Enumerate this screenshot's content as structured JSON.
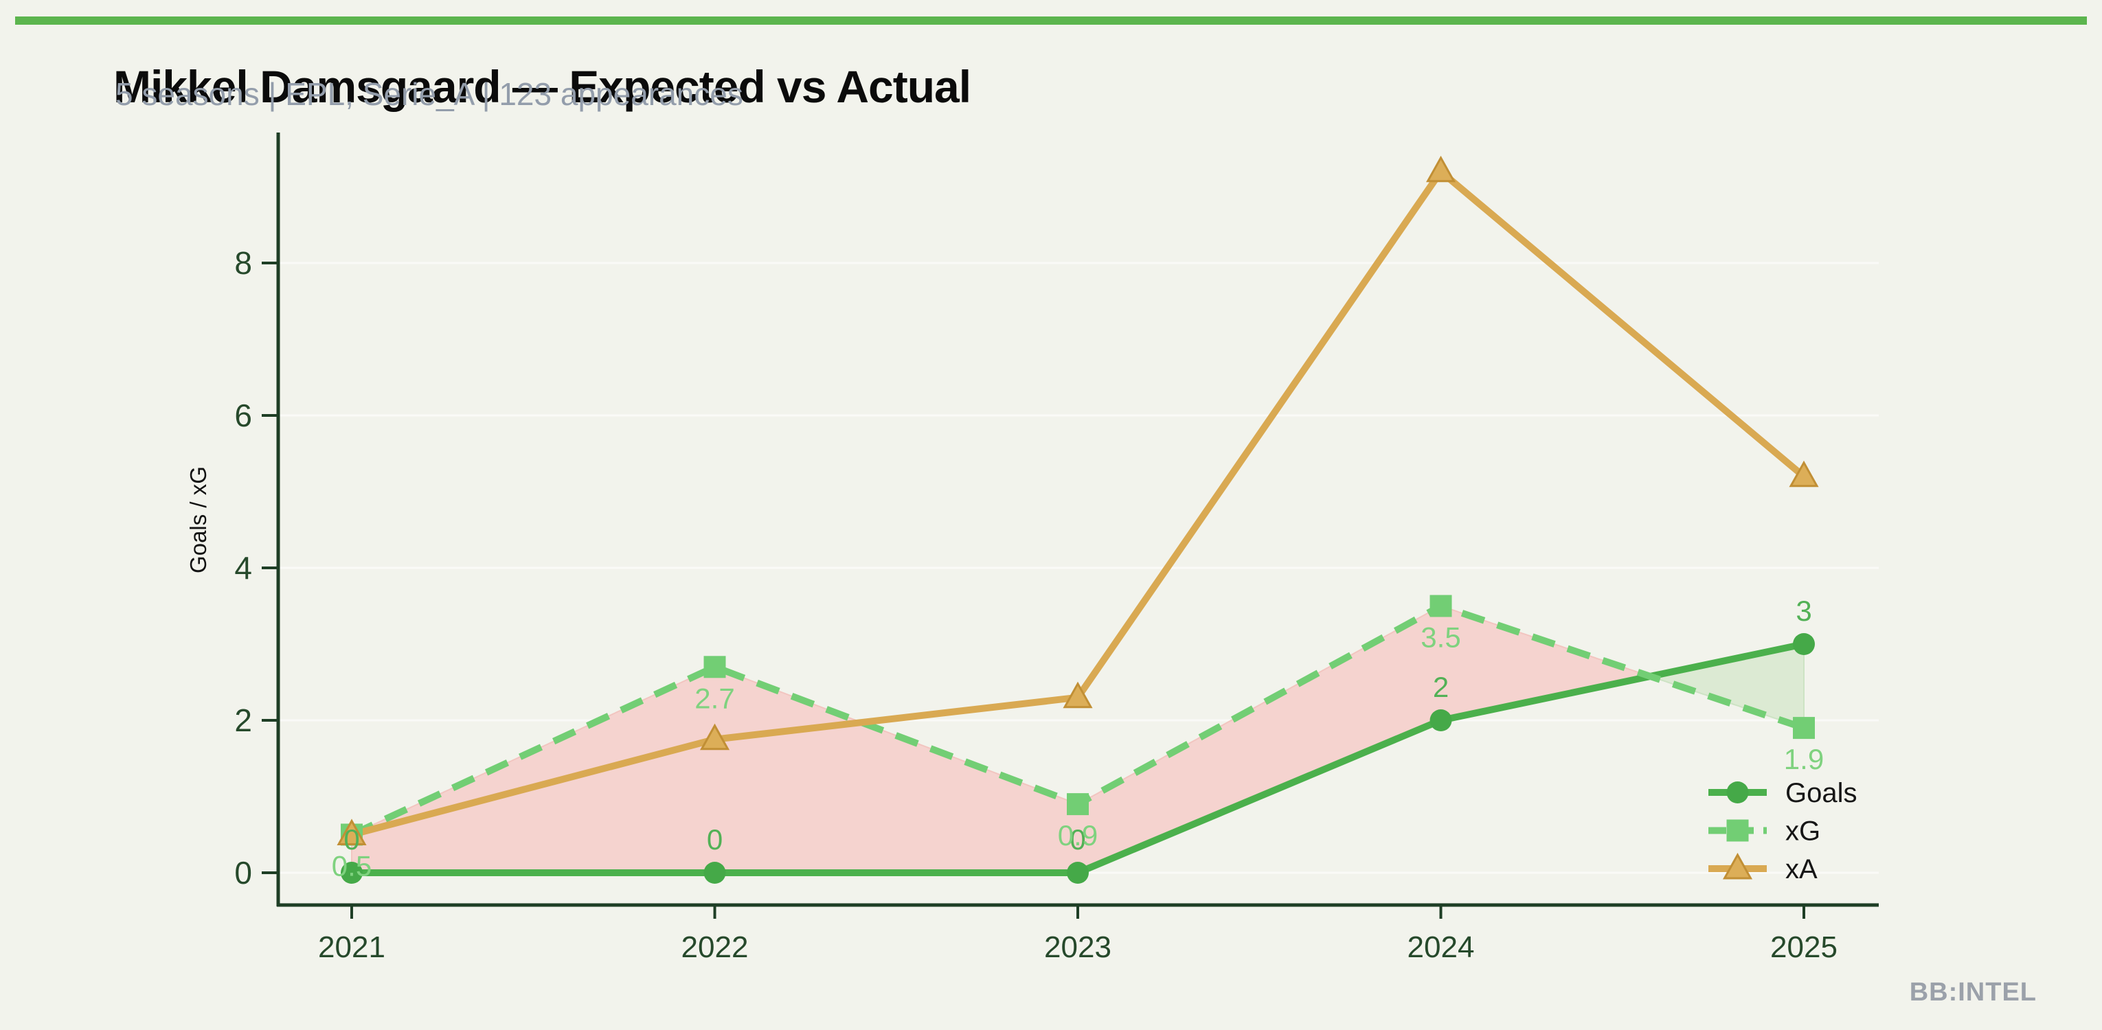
{
  "page": {
    "background": "#f2f3ec",
    "accent_bar_color": "#5cb54e",
    "watermark": "BB:INTEL"
  },
  "header": {
    "title": "Mikkel Damsgaard — Expected vs Actual",
    "subtitle": "5 seasons | EPL, Serie_A | 123 appearances"
  },
  "chart_data": {
    "type": "line",
    "title": "Mikkel Damsgaard — Expected vs Actual",
    "subtitle": "5 seasons | EPL, Serie_A | 123 appearances",
    "x": [
      2021,
      2022,
      2023,
      2024,
      2025
    ],
    "x_tick_labels": [
      "2021",
      "2022",
      "2023",
      "2024",
      "2025"
    ],
    "y_ticks": [
      0,
      2,
      4,
      6,
      8
    ],
    "ylim": [
      -0.4,
      9.7
    ],
    "xlabel": "",
    "ylabel": "Goals / xG",
    "grid": "faint horizontal gridlines at y ticks",
    "legend_position": "lower right, no frame",
    "series": [
      {
        "name": "Goals",
        "values": [
          0,
          0,
          0,
          2,
          3
        ],
        "labels": [
          "0",
          "0",
          "0",
          "2",
          "3"
        ],
        "label_side": "above",
        "label_color": "#52b156",
        "color": "#4bb04c",
        "marker": "circle",
        "marker_color": "#45a948",
        "marker_edge": "",
        "line_style": "solid"
      },
      {
        "name": "xG",
        "values": [
          0.5,
          2.7,
          0.9,
          3.5,
          1.9
        ],
        "labels": [
          "0.5",
          "2.7",
          "0.9",
          "3.5",
          "1.9"
        ],
        "label_side": "below",
        "label_color": "#7fd27f",
        "color": "#72ce74",
        "marker": "square",
        "marker_color": "#72ce74",
        "marker_edge": "",
        "line_style": "dashed"
      },
      {
        "name": "xA",
        "values": [
          0.5,
          1.75,
          2.3,
          9.2,
          5.2
        ],
        "labels": [],
        "label_side": "none",
        "label_color": "#d9a952",
        "color": "#d9a952",
        "marker": "triangle",
        "marker_color": "#dcae58",
        "marker_edge": "#c18f35",
        "line_style": "solid"
      }
    ],
    "fill_between": {
      "upper": "xG",
      "lower": "Goals",
      "over_color": "#f5d3cf",
      "over_edge": "#f2c5c0",
      "under_color": "#dcead3",
      "under_edge": "#cde3c4"
    },
    "axis_color": "#1e3e25",
    "tick_label_color": "#26492b",
    "ylabel_color": "#121212",
    "legend_text_color": "#161616"
  }
}
